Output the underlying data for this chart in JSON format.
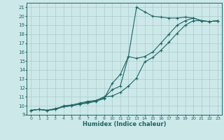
{
  "xlabel": "Humidex (Indice chaleur)",
  "background_color": "#cde8e8",
  "line_color": "#1a6666",
  "grid_color": "#aacccc",
  "xlim": [
    -0.5,
    23.5
  ],
  "ylim": [
    9.0,
    21.5
  ],
  "x_ticks": [
    0,
    1,
    2,
    3,
    4,
    5,
    6,
    7,
    8,
    9,
    10,
    11,
    12,
    13,
    14,
    15,
    16,
    17,
    18,
    19,
    20,
    21,
    22,
    23
  ],
  "y_ticks": [
    9,
    10,
    11,
    12,
    13,
    14,
    15,
    16,
    17,
    18,
    19,
    20,
    21
  ],
  "line1_x": [
    0,
    1,
    2,
    3,
    4,
    5,
    6,
    7,
    8,
    9,
    10,
    11,
    12,
    13,
    14,
    15,
    16,
    17,
    18,
    19,
    20,
    21,
    22,
    23
  ],
  "line1_y": [
    9.5,
    9.6,
    9.5,
    9.6,
    10.0,
    10.1,
    10.3,
    10.5,
    10.6,
    11.0,
    11.1,
    11.5,
    12.2,
    13.1,
    14.9,
    15.4,
    16.2,
    17.1,
    18.1,
    19.0,
    19.5,
    19.5,
    19.4,
    19.5
  ],
  "line2_x": [
    0,
    1,
    2,
    3,
    4,
    5,
    6,
    7,
    8,
    9,
    10,
    11,
    12,
    13,
    14,
    15,
    16,
    17,
    18,
    19,
    20,
    21,
    22,
    23
  ],
  "line2_y": [
    9.5,
    9.6,
    9.5,
    9.7,
    9.9,
    10.0,
    10.2,
    10.4,
    10.6,
    10.9,
    11.8,
    12.2,
    15.5,
    21.0,
    20.5,
    20.0,
    19.9,
    19.8,
    19.8,
    19.9,
    19.8,
    19.5,
    19.4,
    19.5
  ],
  "line3_x": [
    0,
    1,
    2,
    3,
    4,
    5,
    6,
    7,
    8,
    9,
    10,
    11,
    12,
    13,
    14,
    15,
    16,
    17,
    18,
    19,
    20,
    21,
    22,
    23
  ],
  "line3_y": [
    9.5,
    9.6,
    9.5,
    9.6,
    9.9,
    10.0,
    10.2,
    10.3,
    10.5,
    10.8,
    12.5,
    13.5,
    15.5,
    15.3,
    15.5,
    16.0,
    17.0,
    18.0,
    19.0,
    19.5,
    19.8,
    19.5,
    19.4,
    19.5
  ]
}
